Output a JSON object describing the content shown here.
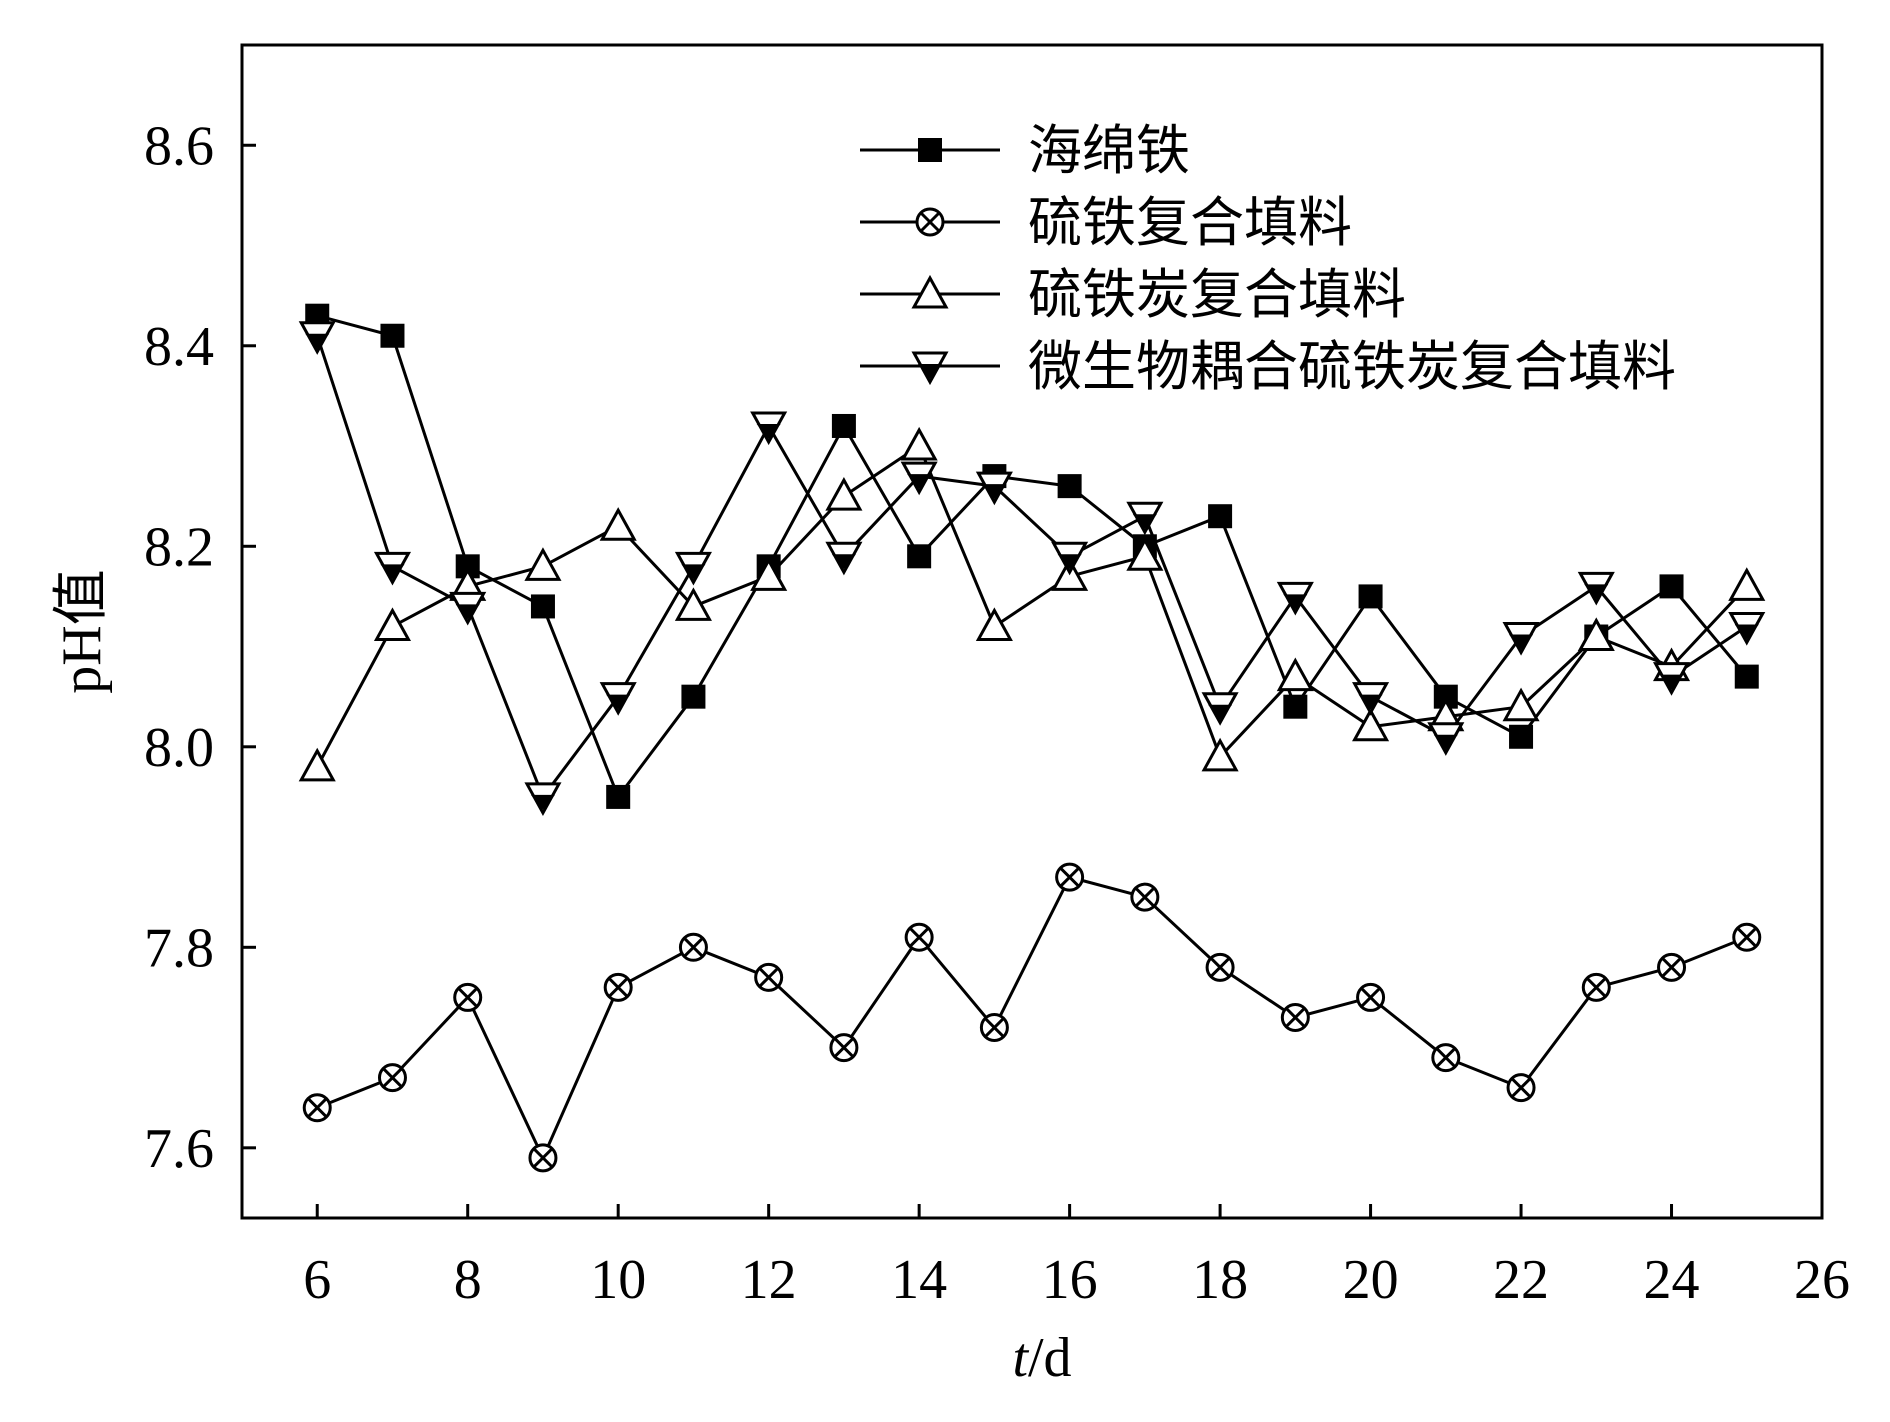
{
  "chart_data": {
    "type": "line",
    "xlabel": "t/d",
    "xlabel_italic": "t",
    "xlabel_rest": "/d",
    "ylabel": "pH值",
    "xlim": [
      5,
      26
    ],
    "ylim": [
      7.53,
      8.7
    ],
    "xticks": [
      6,
      8,
      10,
      12,
      14,
      16,
      18,
      20,
      22,
      24,
      26
    ],
    "yticks": [
      7.6,
      7.8,
      8.0,
      8.2,
      8.4,
      8.6
    ],
    "ytick_labels": [
      "7.6",
      "7.8",
      "8.0",
      "8.2",
      "8.4",
      "8.6"
    ],
    "grid": false,
    "legend_position": "top-right",
    "x": [
      6,
      7,
      8,
      9,
      10,
      11,
      12,
      13,
      14,
      15,
      16,
      17,
      18,
      19,
      20,
      21,
      22,
      23,
      24,
      25
    ],
    "series": [
      {
        "name": "海绵铁",
        "marker": "filled-square",
        "values": [
          8.43,
          8.41,
          8.18,
          8.14,
          7.95,
          8.05,
          8.18,
          8.32,
          8.19,
          8.27,
          8.26,
          8.2,
          8.23,
          8.04,
          8.15,
          8.05,
          8.01,
          8.11,
          8.16,
          8.07
        ]
      },
      {
        "name": "硫铁复合填料",
        "marker": "circle-x",
        "values": [
          7.64,
          7.67,
          7.75,
          7.59,
          7.76,
          7.8,
          7.77,
          7.7,
          7.81,
          7.72,
          7.87,
          7.85,
          7.78,
          7.73,
          7.75,
          7.69,
          7.66,
          7.76,
          7.78,
          7.81
        ]
      },
      {
        "name": "硫铁炭复合填料",
        "marker": "open-triangle-up",
        "values": [
          7.98,
          8.12,
          8.16,
          8.18,
          8.22,
          8.14,
          8.17,
          8.25,
          8.3,
          8.12,
          8.17,
          8.19,
          7.99,
          8.07,
          8.02,
          8.03,
          8.04,
          8.11,
          8.08,
          8.16
        ]
      },
      {
        "name": "微生物耦合硫铁炭复合填料",
        "marker": "half-filled-triangle-down",
        "values": [
          8.41,
          8.18,
          8.14,
          7.95,
          8.05,
          8.18,
          8.32,
          8.19,
          8.27,
          8.26,
          8.19,
          8.23,
          8.04,
          8.15,
          8.05,
          8.01,
          8.11,
          8.16,
          8.07,
          8.12
        ]
      }
    ]
  }
}
